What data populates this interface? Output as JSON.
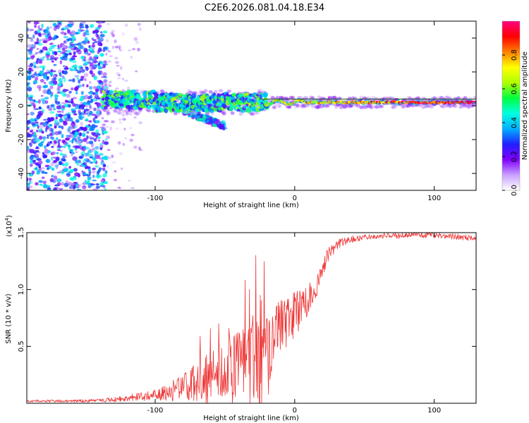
{
  "title": "C2E6.2026.081.04.18.E34",
  "chart_data": [
    {
      "type": "heatmap",
      "name": "spectrogram",
      "xlabel": "Height of straight line (km)",
      "ylabel": "Frequency (Hz)",
      "xlim": [
        -192,
        130
      ],
      "ylim": [
        -50,
        50
      ],
      "xticks": [
        -100,
        0,
        100
      ],
      "xtick_labels": [
        "-100",
        "0",
        "100"
      ],
      "yticks": [
        -40,
        -20,
        0,
        20,
        40
      ],
      "ytick_labels": [
        "-40",
        "-20",
        "0",
        "20",
        "40"
      ],
      "colorbar": {
        "label": "Normalized spectral amplitude",
        "range": [
          0,
          1
        ],
        "ticks": [
          0.0,
          0.2,
          0.4,
          0.6,
          0.8
        ],
        "tick_labels": [
          "0.0",
          "0.2",
          "0.4",
          "0.6",
          "0.8"
        ],
        "colors": [
          "#ffffff",
          "#c8a0ff",
          "#8000ff",
          "#2020ff",
          "#00b0ff",
          "#00ffe0",
          "#00ff40",
          "#b0ff00",
          "#ffff00",
          "#ff8000",
          "#ff0000",
          "#ff0080"
        ]
      },
      "features": [
        {
          "name": "broadband noise",
          "x_range": [
            -192,
            -135
          ],
          "y_range": [
            -50,
            50
          ],
          "amplitude": 0.35
        },
        {
          "name": "scattered noise",
          "x_range": [
            -135,
            -110
          ],
          "y_range": [
            -50,
            50
          ],
          "amplitude": 0.12
        },
        {
          "name": "signal band",
          "x_range": [
            -137,
            130
          ],
          "frequency_hz": 2,
          "amplitude_start": 0.45,
          "amplitude_end": 0.98
        },
        {
          "name": "lower branch",
          "x_range": [
            -80,
            -50
          ],
          "frequency_start_hz": -3,
          "frequency_end_hz": -12,
          "amplitude": 0.3
        }
      ]
    },
    {
      "type": "line",
      "name": "snr",
      "xlabel": "Height of straight line (km)",
      "ylabel": "SNR (10 * v/v)",
      "y_multiplier": "(x10",
      "y_multiplier_exp": "4",
      "xlim": [
        -192,
        130
      ],
      "ylim": [
        0,
        15000
      ],
      "xticks": [
        -100,
        0,
        100
      ],
      "xtick_labels": [
        "-100",
        "0",
        "100"
      ],
      "yticks": [
        5000,
        10000,
        15000
      ],
      "ytick_labels": [
        "0.5",
        "1.0",
        "1.5"
      ],
      "color": "#ee3333",
      "trend": {
        "x": [
          -192,
          -170,
          -150,
          -130,
          -120,
          -110,
          -100,
          -90,
          -80,
          -70,
          -60,
          -55,
          -50,
          -40,
          -30,
          -25,
          -20,
          -15,
          -10,
          -5,
          0,
          5,
          10,
          15,
          20,
          25,
          30,
          35,
          40,
          50,
          60,
          70,
          80,
          90,
          100,
          110,
          120,
          130
        ],
        "y": [
          200,
          200,
          200,
          300,
          450,
          600,
          800,
          1000,
          1300,
          1800,
          2400,
          2600,
          2800,
          3200,
          3600,
          4000,
          3500,
          6500,
          6800,
          7200,
          7800,
          8500,
          9000,
          10200,
          12000,
          13200,
          13800,
          14200,
          14400,
          14600,
          14700,
          14750,
          14800,
          14800,
          14800,
          14700,
          14600,
          14500
        ]
      },
      "noise": {
        "x": [
          -192,
          -140,
          -120,
          -100,
          -80,
          -60,
          -40,
          -25,
          -20,
          -15,
          0,
          15,
          25,
          40,
          130
        ],
        "amplitude": [
          100,
          150,
          300,
          500,
          1200,
          2500,
          3500,
          4500,
          4000,
          2500,
          2000,
          1200,
          600,
          300,
          250
        ]
      }
    }
  ]
}
